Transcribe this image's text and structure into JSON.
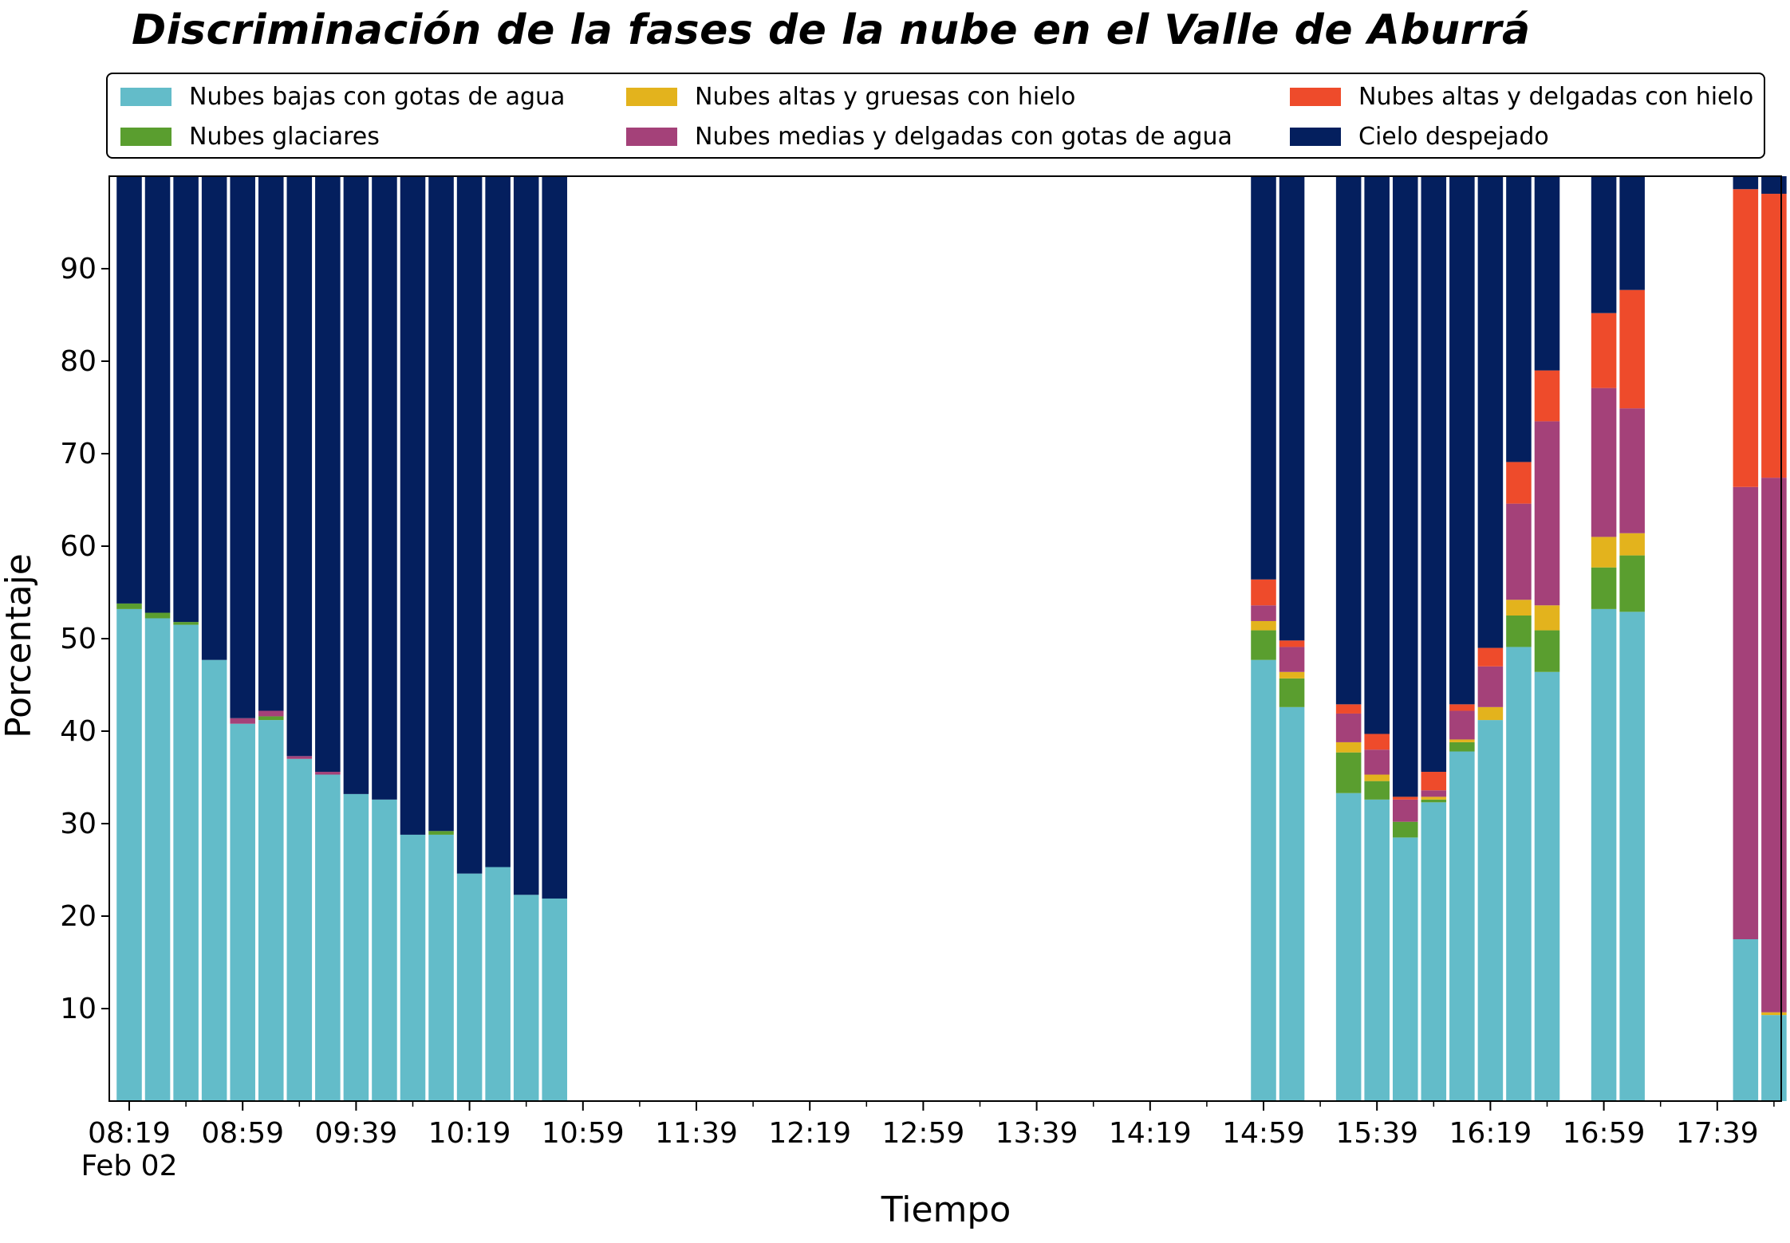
{
  "chart_data": {
    "type": "bar",
    "stacked": true,
    "title": "Discriminación de la fases de la nube en el Valle de Aburrá",
    "xlabel": "Tiempo",
    "ylabel": "Porcentaje",
    "ylim": [
      0,
      100
    ],
    "y_ticks": [
      10,
      20,
      30,
      40,
      50,
      60,
      70,
      80,
      90
    ],
    "x_tick_labels": [
      "08:19",
      "08:59",
      "09:39",
      "10:19",
      "10:59",
      "11:39",
      "12:19",
      "12:59",
      "13:39",
      "14:19",
      "14:59",
      "15:39",
      "16:19",
      "16:59",
      "17:39"
    ],
    "x_date_label": "Feb 02",
    "x_tick_interval_minutes": 40,
    "bar_interval_minutes": 10,
    "legend_placement": "top",
    "grid": false,
    "x": [
      "08:19",
      "08:29",
      "08:39",
      "08:49",
      "08:59",
      "09:09",
      "09:19",
      "09:29",
      "09:39",
      "09:49",
      "09:59",
      "10:09",
      "10:19",
      "10:29",
      "10:39",
      "10:49",
      "14:59",
      "15:09",
      "15:29",
      "15:39",
      "15:49",
      "15:59",
      "16:09",
      "16:19",
      "16:29",
      "16:39",
      "16:59",
      "17:09",
      "17:49",
      "17:59"
    ],
    "series": [
      {
        "name": "Nubes bajas con gotas de agua",
        "color": "#63bcc9",
        "values": [
          53.2,
          52.2,
          51.5,
          47.7,
          40.8,
          41.2,
          37.0,
          35.3,
          33.2,
          32.6,
          28.8,
          28.8,
          24.6,
          25.3,
          22.3,
          21.9,
          47.7,
          42.6,
          33.3,
          32.6,
          28.5,
          32.3,
          37.8,
          41.2,
          49.1,
          46.4,
          53.2,
          52.9,
          17.5,
          9.3
        ]
      },
      {
        "name": "Nubes glaciares",
        "color": "#5a9e2f",
        "values": [
          0.6,
          0.6,
          0.3,
          0,
          0,
          0.4,
          0,
          0,
          0,
          0,
          0,
          0.4,
          0,
          0,
          0,
          0,
          3.2,
          3.1,
          4.4,
          2.0,
          1.7,
          0.3,
          1.0,
          0,
          3.4,
          4.5,
          4.5,
          6.1,
          0,
          0
        ]
      },
      {
        "name": "Nubes altas y gruesas con hielo",
        "color": "#e3b31d",
        "values": [
          0,
          0,
          0,
          0,
          0,
          0,
          0,
          0,
          0,
          0,
          0,
          0,
          0,
          0,
          0,
          0,
          1.0,
          0.7,
          1.1,
          0.7,
          0,
          0.3,
          0.3,
          1.4,
          1.7,
          2.7,
          3.3,
          2.4,
          0,
          0.3
        ]
      },
      {
        "name": "Nubes medias y delgadas con gotas de agua",
        "color": "#a44179",
        "values": [
          0,
          0,
          0,
          0,
          0.6,
          0.6,
          0.3,
          0.3,
          0,
          0,
          0,
          0,
          0,
          0,
          0,
          0,
          1.7,
          2.7,
          3.1,
          2.7,
          2.4,
          0.7,
          3.1,
          4.4,
          10.4,
          19.9,
          16.1,
          13.5,
          48.9,
          57.8
        ]
      },
      {
        "name": "Nubes altas y delgadas con hielo",
        "color": "#ee4b2b",
        "values": [
          0,
          0,
          0,
          0,
          0,
          0,
          0,
          0,
          0,
          0,
          0,
          0,
          0,
          0,
          0,
          0,
          2.8,
          0.7,
          1.0,
          1.7,
          0.3,
          2.0,
          0.7,
          2.0,
          4.5,
          5.5,
          8.1,
          12.8,
          32.2,
          30.7
        ]
      },
      {
        "name": "Cielo despejado",
        "color": "#041f5e",
        "values": [
          46.2,
          47.2,
          48.2,
          52.3,
          58.6,
          57.8,
          62.7,
          64.4,
          66.8,
          67.4,
          71.2,
          70.8,
          75.4,
          74.7,
          77.7,
          78.1,
          43.6,
          50.2,
          57.1,
          60.3,
          67.1,
          64.4,
          57.1,
          51.0,
          30.9,
          21.0,
          14.8,
          12.3,
          1.4,
          1.9
        ]
      }
    ]
  }
}
